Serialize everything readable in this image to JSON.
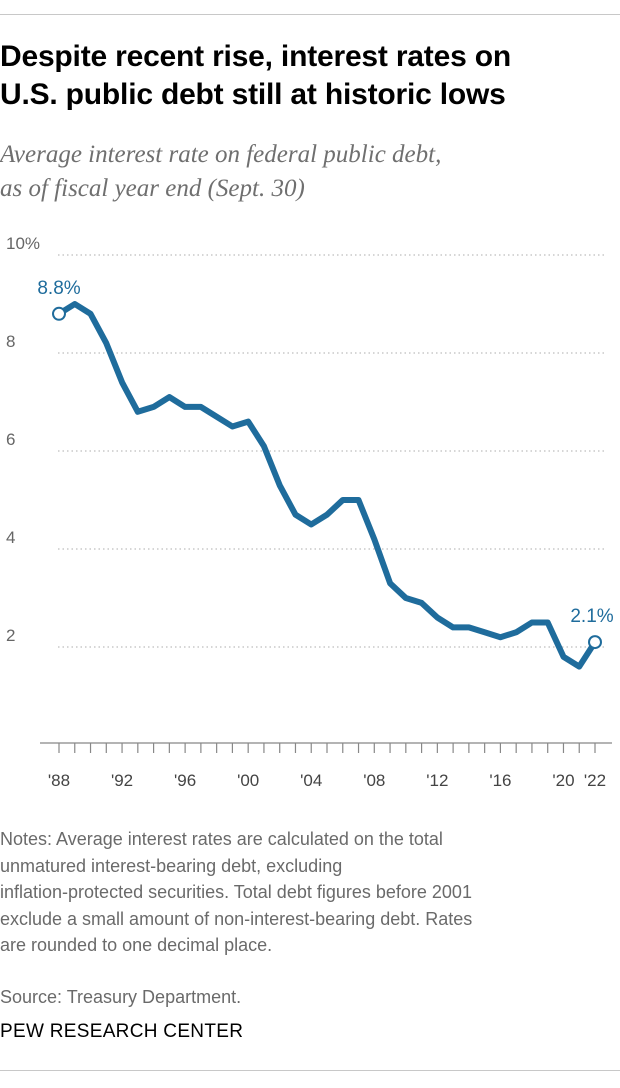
{
  "title_lines": [
    "Despite recent rise, interest rates on",
    "U.S. public debt still at historic lows"
  ],
  "subtitle_lines": [
    "Average interest rate on federal public debt,",
    "as of fiscal year end (Sept. 30)"
  ],
  "notes_lines": [
    "Notes: Average interest rates are calculated on the total",
    "unmatured interest-bearing debt, excluding",
    "inflation-protected securities. Total debt figures before 2001",
    "exclude a small amount of non-interest-bearing debt. Rates",
    "are rounded to one decimal place."
  ],
  "source": "Source: Treasury Department.",
  "org": "PEW RESEARCH CENTER",
  "colors": {
    "line": "#1f6c9c",
    "grid": "#bdbdbd",
    "axis": "#888888"
  },
  "chart_data": {
    "type": "line",
    "title": "Despite recent rise, interest rates on U.S. public debt still at historic lows",
    "ylabel": "Average interest rate on federal public debt, as of fiscal year end (Sept. 30)",
    "xlabel": "",
    "ylim": [
      0,
      10
    ],
    "xlim": [
      1988,
      2022
    ],
    "y_ticks": [
      {
        "value": 10,
        "label": "10%"
      },
      {
        "value": 8,
        "label": "8"
      },
      {
        "value": 6,
        "label": "6"
      },
      {
        "value": 4,
        "label": "4"
      },
      {
        "value": 2,
        "label": "2"
      }
    ],
    "x_tick_labels": [
      {
        "year": 1988,
        "label": "'88"
      },
      {
        "year": 1992,
        "label": "'92"
      },
      {
        "year": 1996,
        "label": "'96"
      },
      {
        "year": 2000,
        "label": "'00"
      },
      {
        "year": 2004,
        "label": "'04"
      },
      {
        "year": 2008,
        "label": "'08"
      },
      {
        "year": 2012,
        "label": "'12"
      },
      {
        "year": 2016,
        "label": "'16"
      },
      {
        "year": 2020,
        "label": "'20"
      },
      {
        "year": 2022,
        "label": "'22"
      }
    ],
    "grid": true,
    "series": [
      {
        "name": "Average interest rate",
        "x": [
          1988,
          1989,
          1990,
          1991,
          1992,
          1993,
          1994,
          1995,
          1996,
          1997,
          1998,
          1999,
          2000,
          2001,
          2002,
          2003,
          2004,
          2005,
          2006,
          2007,
          2008,
          2009,
          2010,
          2011,
          2012,
          2013,
          2014,
          2015,
          2016,
          2017,
          2018,
          2019,
          2020,
          2021,
          2022
        ],
        "values": [
          8.8,
          9.0,
          8.8,
          8.2,
          7.4,
          6.8,
          6.9,
          7.1,
          6.9,
          6.9,
          6.7,
          6.5,
          6.6,
          6.1,
          5.3,
          4.7,
          4.5,
          4.7,
          5.0,
          5.0,
          4.2,
          3.3,
          3.0,
          2.9,
          2.6,
          2.4,
          2.4,
          2.3,
          2.2,
          2.3,
          2.5,
          2.5,
          1.8,
          1.6,
          2.1
        ]
      }
    ],
    "annotations": [
      {
        "year": 1988,
        "value": 8.8,
        "label": "8.8%"
      },
      {
        "year": 2022,
        "value": 2.1,
        "label": "2.1%"
      }
    ]
  }
}
